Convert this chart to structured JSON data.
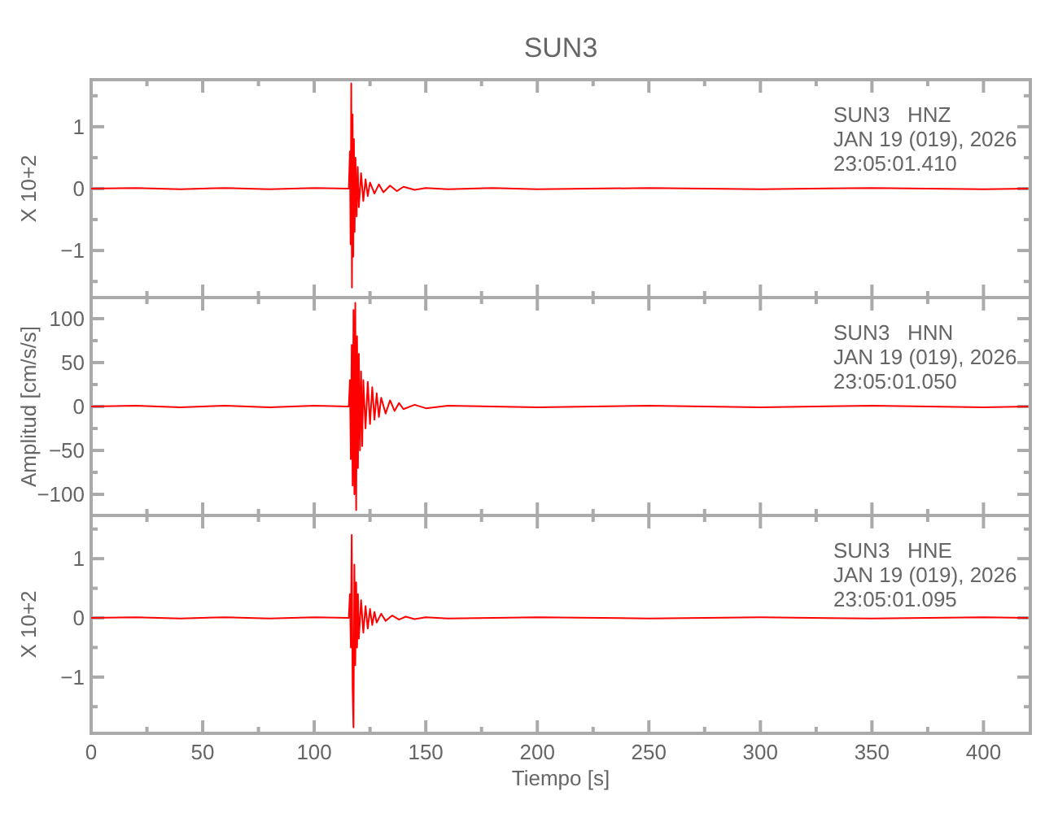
{
  "chart_data": [
    {
      "type": "line",
      "title": "SUN3",
      "ylabel": "X 10+2",
      "annotations": [
        "SUN3   HNZ",
        "JAN 19 (019), 2026",
        "23:05:01.410"
      ],
      "tick_labels": "y",
      "xlim": [
        0,
        421
      ],
      "xticks": [
        0,
        {
          "value": 25,
          "label": null
        },
        50,
        {
          "value": 75,
          "label": null
        },
        100,
        {
          "value": 125,
          "label": null
        },
        150,
        {
          "value": 175,
          "label": null
        },
        200,
        {
          "value": 225,
          "label": null
        },
        250,
        {
          "value": 275,
          "label": null
        },
        300,
        {
          "value": 325,
          "label": null
        },
        350,
        {
          "value": 375,
          "label": null
        },
        400
      ],
      "ylim": [
        -1.76,
        1.76
      ],
      "yticks": [
        {
          "value": -1.5,
          "label": null
        },
        -1,
        {
          "value": -0.5,
          "label": null
        },
        0,
        {
          "value": 0.5,
          "label": null
        },
        1,
        {
          "value": 1.5,
          "label": null
        }
      ],
      "x": [
        0,
        20,
        40,
        60,
        80,
        100,
        115.5,
        116,
        116.3,
        116.6,
        116.9,
        117.2,
        117.5,
        117.8,
        118.1,
        118.5,
        119,
        119.5,
        120,
        121,
        122,
        123,
        124,
        125,
        127,
        129,
        131,
        134,
        137,
        140,
        145,
        150,
        160,
        180,
        200,
        250,
        300,
        350,
        400,
        420
      ],
      "series": [
        {
          "color": "#ff0000",
          "values": [
            0,
            0.01,
            -0.01,
            0.01,
            -0.01,
            0.01,
            0,
            0.6,
            -0.9,
            1.7,
            -1.6,
            1.2,
            -1.1,
            0.8,
            -0.7,
            0.5,
            -0.45,
            0.35,
            -0.3,
            0.25,
            -0.2,
            0.15,
            -0.12,
            0.1,
            -0.08,
            0.07,
            -0.06,
            0.05,
            -0.04,
            0.03,
            -0.02,
            0.01,
            -0.01,
            0.01,
            -0.01,
            0.01,
            -0.01,
            0.01,
            -0.01,
            0
          ]
        }
      ]
    },
    {
      "type": "line",
      "ylabel": "Amplitud [cm/s/s]",
      "annotations": [
        "SUN3   HNN",
        "JAN 19 (019), 2026",
        "23:05:01.050"
      ],
      "tick_labels": "y",
      "xlim": [
        0,
        421
      ],
      "xticks": [
        0,
        {
          "value": 25,
          "label": null
        },
        50,
        {
          "value": 75,
          "label": null
        },
        100,
        {
          "value": 125,
          "label": null
        },
        150,
        {
          "value": 175,
          "label": null
        },
        200,
        {
          "value": 225,
          "label": null
        },
        250,
        {
          "value": 275,
          "label": null
        },
        300,
        {
          "value": 325,
          "label": null
        },
        350,
        {
          "value": 375,
          "label": null
        },
        400
      ],
      "ylim": [
        -124,
        124
      ],
      "yticks": [
        -100,
        {
          "value": -75,
          "label": null
        },
        -50,
        {
          "value": -25,
          "label": null
        },
        0,
        {
          "value": 25,
          "label": null
        },
        50,
        {
          "value": 75,
          "label": null
        },
        100
      ],
      "x": [
        0,
        20,
        40,
        60,
        80,
        100,
        115.5,
        116,
        116.4,
        116.8,
        117.2,
        117.6,
        118,
        118.4,
        118.8,
        119.2,
        119.6,
        120,
        120.5,
        121,
        121.5,
        122,
        123,
        124,
        125,
        126,
        127,
        128,
        129,
        130,
        132,
        134,
        136,
        138,
        140,
        145,
        150,
        160,
        200,
        250,
        300,
        350,
        400,
        420
      ],
      "series": [
        {
          "color": "#ff0000",
          "values": [
            0,
            1,
            -1,
            1,
            -1,
            1,
            0,
            30,
            -60,
            70,
            -90,
            110,
            -100,
            118,
            -118,
            80,
            -70,
            60,
            -50,
            40,
            -45,
            30,
            -25,
            28,
            -20,
            22,
            -15,
            15,
            -12,
            10,
            -8,
            7,
            -5,
            4,
            -3,
            2,
            -2,
            1,
            -1,
            1,
            -1,
            1,
            -1,
            0
          ]
        }
      ]
    },
    {
      "type": "line",
      "ylabel": "X 10+2",
      "xlabel": "Tiempo [s]",
      "annotations": [
        "SUN3   HNE",
        "JAN 19 (019), 2026",
        "23:05:01.095"
      ],
      "xlim": [
        0,
        421
      ],
      "xticks": [
        0,
        {
          "value": 25,
          "label": null
        },
        50,
        {
          "value": 75,
          "label": null
        },
        100,
        {
          "value": 125,
          "label": null
        },
        150,
        {
          "value": 175,
          "label": null
        },
        200,
        {
          "value": 225,
          "label": null
        },
        250,
        {
          "value": 275,
          "label": null
        },
        300,
        {
          "value": 325,
          "label": null
        },
        350,
        {
          "value": 375,
          "label": null
        },
        400
      ],
      "ylim": [
        -1.95,
        1.73
      ],
      "yticks": [
        {
          "value": -1.5,
          "label": null
        },
        -1,
        {
          "value": -0.5,
          "label": null
        },
        0,
        {
          "value": 0.5,
          "label": null
        },
        1,
        {
          "value": 1.5,
          "label": null
        }
      ],
      "x": [
        0,
        20,
        40,
        60,
        80,
        100,
        115.5,
        116,
        116.4,
        116.8,
        117.2,
        117.6,
        118,
        118.4,
        118.8,
        119.2,
        119.6,
        120,
        121,
        122,
        123,
        124,
        125,
        126,
        127,
        128,
        130,
        132,
        135,
        138,
        141,
        145,
        150,
        160,
        200,
        250,
        300,
        350,
        400,
        420
      ],
      "series": [
        {
          "color": "#ff0000",
          "values": [
            0,
            0.01,
            -0.01,
            0.01,
            -0.01,
            0.01,
            0,
            0.4,
            -0.5,
            1.4,
            -1.2,
            -1.85,
            0.9,
            -0.8,
            0.6,
            -0.5,
            0.4,
            -0.35,
            0.3,
            -0.25,
            0.2,
            -0.18,
            0.15,
            -0.12,
            0.1,
            -0.08,
            0.07,
            -0.05,
            0.04,
            -0.03,
            0.02,
            -0.02,
            0.01,
            -0.01,
            0.01,
            -0.01,
            0.01,
            -0.01,
            0.01,
            0
          ]
        }
      ]
    }
  ]
}
